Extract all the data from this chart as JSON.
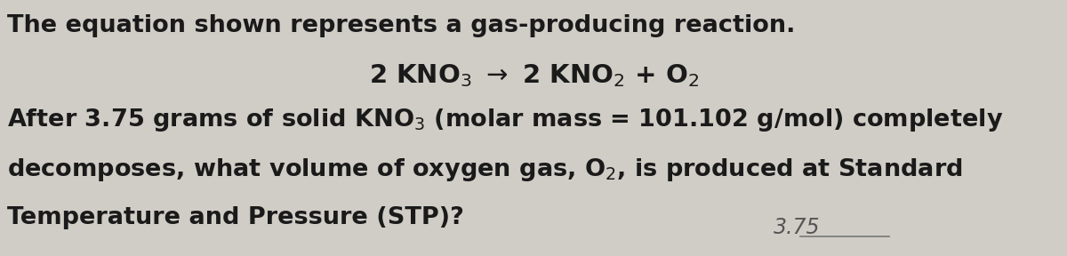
{
  "background_color": "#d0cdc6",
  "font_color": "#1a1a1a",
  "font_size_main": 19.5,
  "font_size_eq": 21,
  "font_size_annotation": 17,
  "line1": "The equation shown represents a gas-producing reaction.",
  "line3": "After 3.75 grams of solid KNO",
  "line3_sub": "3",
  "line3_rest": " (molar mass = 101.102 g/mol) completely",
  "line4": "decomposes, what volume of oxygen gas, O",
  "line4_sub": "2",
  "line4_rest": ", is produced at Standard",
  "line5": "Temperature and Pressure (STP)?",
  "annotation": "3.75",
  "eq_main1": "2 KNO",
  "eq_sub1": "3",
  "eq_arrow": " → 2 KNO",
  "eq_sub2": "2",
  "eq_rest": " + O",
  "eq_sub3": "2"
}
